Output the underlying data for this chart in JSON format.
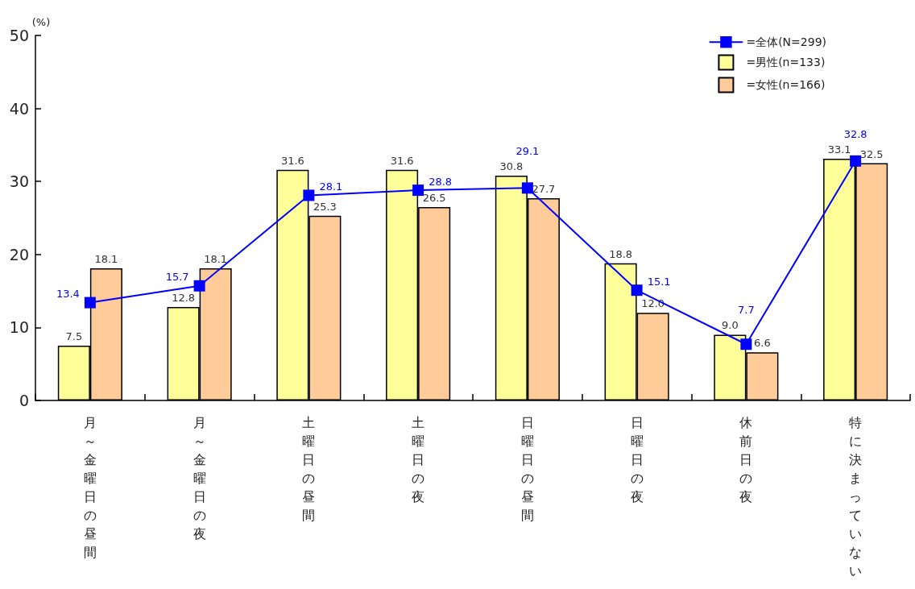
{
  "chart_data": {
    "type": "bar",
    "ylabel": "(%)",
    "categories": [
      "月～金曜日の昼間",
      "月～金曜日の夜",
      "土曜日の昼間",
      "土曜日の夜",
      "日曜日の昼間",
      "日曜日の夜",
      "休前日の夜",
      "特に決まっていない"
    ],
    "series": [
      {
        "name": "=全体(N=299)",
        "type": "line",
        "color": "#0000ff",
        "values": [
          13.4,
          15.7,
          28.1,
          28.8,
          29.1,
          15.1,
          7.7,
          32.8
        ],
        "value_labels": [
          "13.4",
          "15.7",
          "28.1",
          "28.8",
          "29.1",
          "15.1",
          "7.7",
          "32.8"
        ]
      },
      {
        "name": "=男性(n=133)",
        "color": "#ffff99",
        "values": [
          7.5,
          12.8,
          31.6,
          31.6,
          30.8,
          18.8,
          9.0,
          33.1
        ],
        "value_labels": [
          "7.5",
          "12.8",
          "31.6",
          "31.6",
          "30.8",
          "18.8",
          "9.0",
          "33.1"
        ]
      },
      {
        "name": "=女性(n=166)",
        "color": "#ffcc99",
        "values": [
          18.1,
          18.1,
          25.3,
          26.5,
          27.7,
          12.0,
          6.6,
          32.5
        ],
        "value_labels": [
          "18.1",
          "18.1",
          "25.3",
          "26.5",
          "27.7",
          "12.0",
          "6.6",
          "32.5"
        ]
      }
    ],
    "ylim": [
      0,
      50
    ],
    "yticks": [
      0,
      10,
      20,
      30,
      40,
      50
    ],
    "grid": false,
    "legend": "top right",
    "marker": "square",
    "line_style": "solid"
  }
}
